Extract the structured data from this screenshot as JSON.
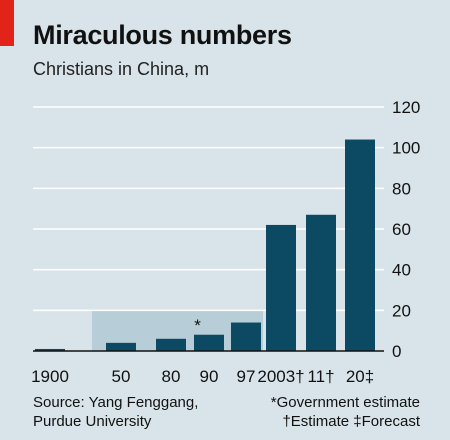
{
  "title": "Miraculous numbers",
  "subtitle": "Christians in China, m",
  "colors": {
    "background": "#d9e4ea",
    "bar": "#0c4a63",
    "accent": "#e2231a",
    "government_band": "#b7cdd8",
    "gridline": "#ffffff"
  },
  "chart_data": {
    "type": "bar",
    "categories": [
      "1900",
      "50",
      "80",
      "90",
      "97",
      "2003†",
      "11†",
      "20‡"
    ],
    "values": [
      1,
      4,
      6,
      8,
      14,
      62,
      67,
      104
    ],
    "ylim": [
      0,
      120
    ],
    "yticks": [
      "0",
      "20",
      "40",
      "60",
      "80",
      "100",
      "120"
    ],
    "y_axis_position": "right",
    "grid": true,
    "annotations": {
      "government_estimate_marker": "*",
      "government_estimate_categories": [
        "50",
        "80",
        "90",
        "97"
      ]
    }
  },
  "footer": {
    "source_line1": "Source: Yang Fenggang,",
    "source_line2": "Purdue University",
    "note_line1": "*Government estimate",
    "note_line2": "†Estimate  ‡Forecast"
  }
}
